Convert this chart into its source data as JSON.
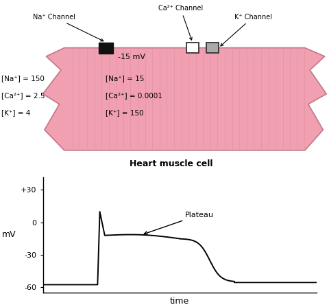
{
  "fig_width": 4.81,
  "fig_height": 4.44,
  "dpi": 100,
  "cell_color": "#f0a0b0",
  "cell_stripe_color": "#d88898",
  "cell_edge_color": "#c07888",
  "background_color": "#ffffff",
  "outside_labels": {
    "Na+": "[Na⁺] = 150",
    "Ca2+": "[Ca²⁺] = 2.5",
    "K+": "[K⁺] = 4"
  },
  "inside_labels": {
    "Na+": "[Na⁺] = 15",
    "Ca2+": "[Ca²⁺] = 0.0001",
    "K+": "[K⁺] = 150",
    "voltage": "-15 mV"
  },
  "channel_labels": {
    "Na": "Na⁺ Channel",
    "Ca": "Ca²⁺ Channel",
    "K": "K⁺ Channel"
  },
  "cell_title": "Heart muscle cell",
  "plot_yticks": [
    -60,
    -30,
    0,
    30
  ],
  "plot_ytick_labels": [
    "-60",
    "-30",
    "0",
    "+30"
  ],
  "plot_ylabel": "mV",
  "plot_xlabel": "time",
  "plateau_label": "Plateau",
  "plot_ylim": [
    -65,
    42
  ],
  "plot_xlim": [
    0,
    10
  ]
}
